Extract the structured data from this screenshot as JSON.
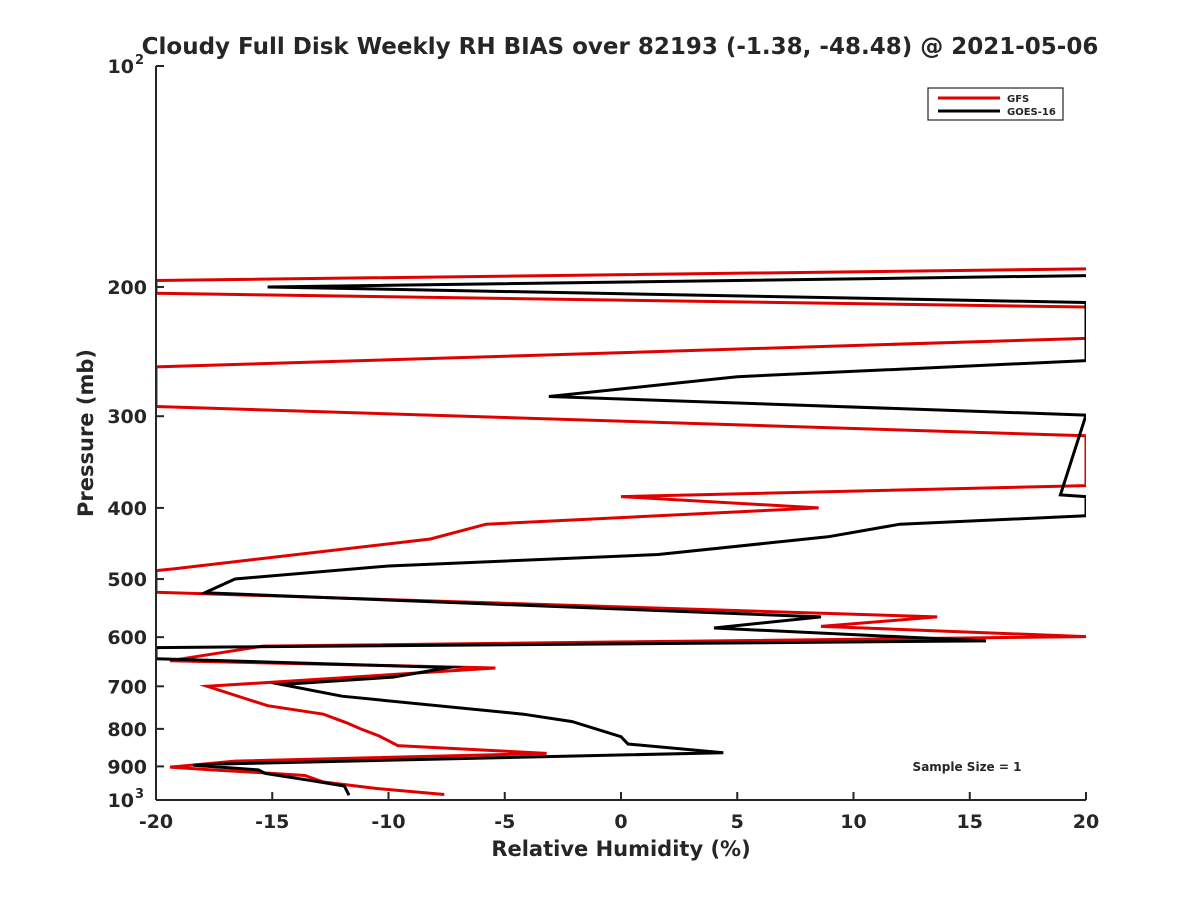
{
  "chart_data": {
    "type": "line",
    "title": "Cloudy Full Disk Weekly RH BIAS over 82193 (-1.38, -48.48) @ 2021-05-06",
    "xlabel": "Relative Humidity (%)",
    "ylabel": "Pressure (mb)",
    "xlim": [
      -20,
      20
    ],
    "ylim": [
      100,
      1000
    ],
    "yscale": "log",
    "y_reversed": true,
    "grid": false,
    "legend_position": "top-right",
    "x_ticks": [
      -20,
      -15,
      -10,
      -5,
      0,
      5,
      10,
      15,
      20
    ],
    "y_ticks": [
      {
        "value": 100,
        "label": "10",
        "sup": "2"
      },
      {
        "value": 200,
        "label": "200"
      },
      {
        "value": 300,
        "label": "300"
      },
      {
        "value": 400,
        "label": "400"
      },
      {
        "value": 500,
        "label": "500"
      },
      {
        "value": 600,
        "label": "600"
      },
      {
        "value": 700,
        "label": "700"
      },
      {
        "value": 800,
        "label": "800"
      },
      {
        "value": 900,
        "label": "900"
      },
      {
        "value": 1000,
        "label": "10",
        "sup": "3"
      }
    ],
    "annotation": "Sample Size = 1",
    "series": [
      {
        "name": "GFS",
        "color": "#e00000",
        "points": [
          [
            20,
            189
          ],
          [
            -20,
            196
          ],
          [
            -20,
            204
          ],
          [
            20,
            213
          ],
          [
            20,
            235
          ],
          [
            -20,
            257
          ],
          [
            -20,
            291
          ],
          [
            20,
            319
          ],
          [
            20,
            373
          ],
          [
            0,
            386
          ],
          [
            8.5,
            400
          ],
          [
            -5.8,
            421
          ],
          [
            -8.2,
            441
          ],
          [
            -19.2,
            484
          ],
          [
            -20,
            487
          ],
          [
            -20,
            521
          ],
          [
            13.6,
            563
          ],
          [
            8.6,
            580
          ],
          [
            20,
            599
          ],
          [
            -15.4,
            617
          ],
          [
            -19.4,
            646
          ],
          [
            -5.4,
            661
          ],
          [
            -17.8,
            700
          ],
          [
            -15.2,
            744
          ],
          [
            -12.8,
            764
          ],
          [
            -11.8,
            785
          ],
          [
            -11.2,
            800
          ],
          [
            -10.4,
            818
          ],
          [
            -9.6,
            843
          ],
          [
            -3.2,
            864
          ],
          [
            -16.6,
            885
          ],
          [
            -18.2,
            895
          ],
          [
            -19.4,
            902
          ],
          [
            -17.6,
            910
          ],
          [
            -16.2,
            915
          ],
          [
            -13.6,
            926
          ],
          [
            -12.8,
            945
          ],
          [
            -10.6,
            964
          ],
          [
            -7.6,
            983
          ]
        ]
      },
      {
        "name": "GOES-16",
        "color": "#000000",
        "points": [
          [
            20,
            193
          ],
          [
            -15.2,
            200
          ],
          [
            20,
            210
          ],
          [
            20,
            252
          ],
          [
            5,
            265
          ],
          [
            -3.1,
            282
          ],
          [
            20,
            299
          ],
          [
            18.9,
            384
          ],
          [
            20,
            386
          ],
          [
            20,
            410
          ],
          [
            12,
            421
          ],
          [
            8.9,
            438
          ],
          [
            1.6,
            463
          ],
          [
            -10,
            480
          ],
          [
            -16.6,
            500
          ],
          [
            -17.9,
            522
          ],
          [
            8.6,
            563
          ],
          [
            4,
            583
          ],
          [
            15.7,
            607
          ],
          [
            -20,
            620
          ],
          [
            -20,
            642
          ],
          [
            -7.4,
            660
          ],
          [
            -9.8,
            680
          ],
          [
            -14.6,
            696
          ],
          [
            -12,
            722
          ],
          [
            -4.2,
            764
          ],
          [
            -2.1,
            782
          ],
          [
            0,
            820
          ],
          [
            0.3,
            839
          ],
          [
            4.4,
            862
          ],
          [
            -17,
            893
          ],
          [
            -18.4,
            897
          ],
          [
            -15.6,
            910
          ],
          [
            -15.3,
            920
          ],
          [
            -13.4,
            940
          ],
          [
            -11.9,
            957
          ],
          [
            -11.7,
            985
          ]
        ]
      }
    ]
  }
}
